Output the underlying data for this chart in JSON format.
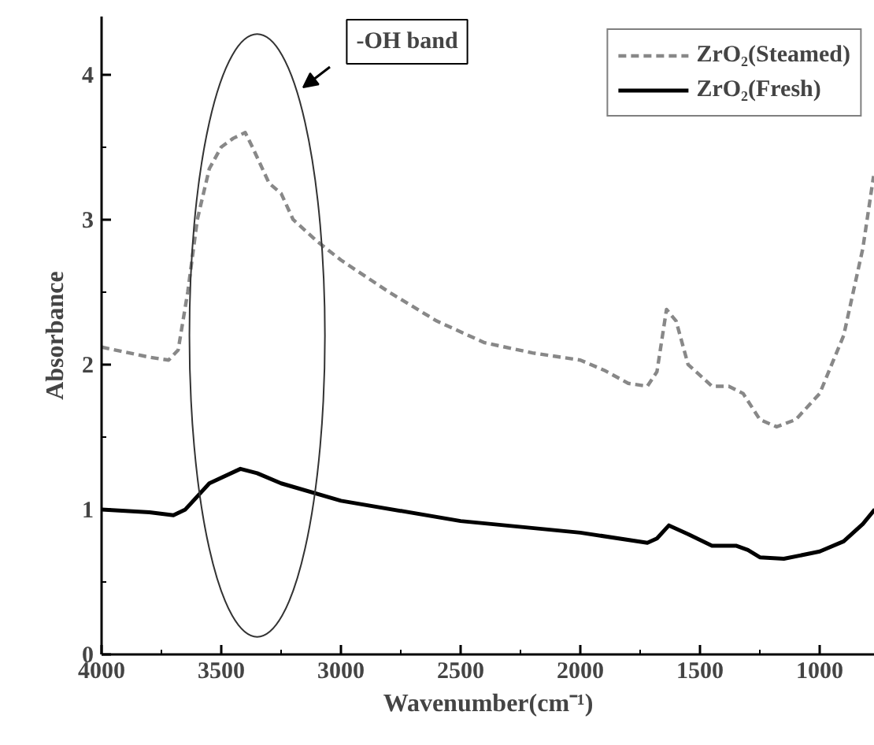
{
  "chart_data": {
    "type": "line",
    "xlabel": "Wavenumber(cm⁻¹)",
    "ylabel": "Absorbance",
    "annotations": [
      "-OH band"
    ],
    "xlim": [
      4000,
      770
    ],
    "ylim": [
      0,
      4.4
    ],
    "xticks": [
      4000,
      3500,
      3000,
      2500,
      2000,
      1500,
      1000
    ],
    "yticks": [
      0,
      1,
      2,
      3,
      4
    ],
    "grid": false,
    "legend": "top right",
    "series": [
      {
        "name": "ZrO₂(Steamed)",
        "color": "#888888",
        "line_style": "dashed",
        "x": [
          4000,
          3800,
          3720,
          3680,
          3640,
          3600,
          3550,
          3500,
          3450,
          3400,
          3370,
          3300,
          3250,
          3200,
          3100,
          3000,
          2800,
          2600,
          2400,
          2200,
          2000,
          1900,
          1800,
          1720,
          1680,
          1640,
          1600,
          1550,
          1450,
          1380,
          1320,
          1250,
          1180,
          1100,
          1000,
          900,
          820,
          775
        ],
        "values": [
          2.12,
          2.05,
          2.03,
          2.1,
          2.5,
          3.0,
          3.35,
          3.5,
          3.56,
          3.6,
          3.5,
          3.25,
          3.18,
          3.0,
          2.85,
          2.72,
          2.5,
          2.3,
          2.15,
          2.08,
          2.03,
          1.96,
          1.87,
          1.85,
          1.95,
          2.38,
          2.3,
          2.0,
          1.85,
          1.85,
          1.8,
          1.62,
          1.57,
          1.62,
          1.8,
          2.2,
          2.8,
          3.3
        ]
      },
      {
        "name": "ZrO₂(Fresh)",
        "color": "#000000",
        "line_style": "solid",
        "x": [
          4000,
          3800,
          3700,
          3650,
          3550,
          3420,
          3350,
          3250,
          3000,
          2500,
          2000,
          1720,
          1680,
          1630,
          1550,
          1450,
          1350,
          1300,
          1250,
          1150,
          1000,
          900,
          820,
          770
        ],
        "values": [
          1.0,
          0.98,
          0.96,
          1.0,
          1.18,
          1.28,
          1.25,
          1.18,
          1.06,
          0.92,
          0.84,
          0.77,
          0.8,
          0.89,
          0.83,
          0.75,
          0.75,
          0.72,
          0.67,
          0.66,
          0.71,
          0.78,
          0.9,
          1.0
        ]
      }
    ]
  }
}
